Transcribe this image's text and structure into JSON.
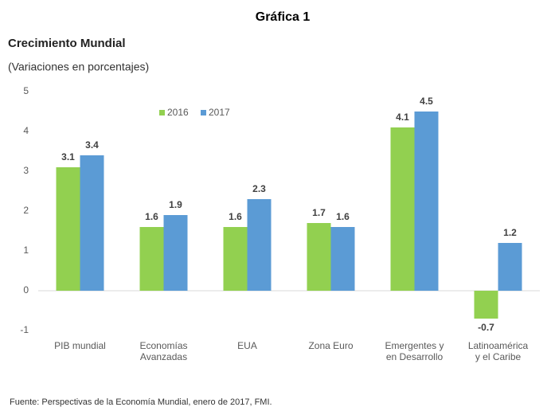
{
  "header": "Gráfica 1",
  "chart_data": {
    "type": "bar",
    "title": "Crecimiento Mundial",
    "subtitle": "(Variaciones en porcentajes)",
    "categories": [
      "PIB mundial",
      "Economías\nAvanzadas",
      "EUA",
      "Zona Euro",
      "Emergentes y\nen Desarrollo",
      "Latinoamérica\ny el Caribe"
    ],
    "series": [
      {
        "name": "2016",
        "color": "#92d050",
        "values": [
          3.1,
          1.6,
          1.6,
          1.7,
          4.1,
          -0.7
        ]
      },
      {
        "name": "2017",
        "color": "#5b9bd5",
        "values": [
          3.4,
          1.9,
          2.3,
          1.6,
          4.5,
          1.2
        ]
      }
    ],
    "ylim": [
      -1,
      5
    ],
    "yticks": [
      -1,
      0,
      1,
      2,
      3,
      4,
      5
    ],
    "grid": false,
    "legend": "top",
    "source": "Fuente: Perspectivas de la Economía Mundial, enero de 2017, FMI."
  }
}
